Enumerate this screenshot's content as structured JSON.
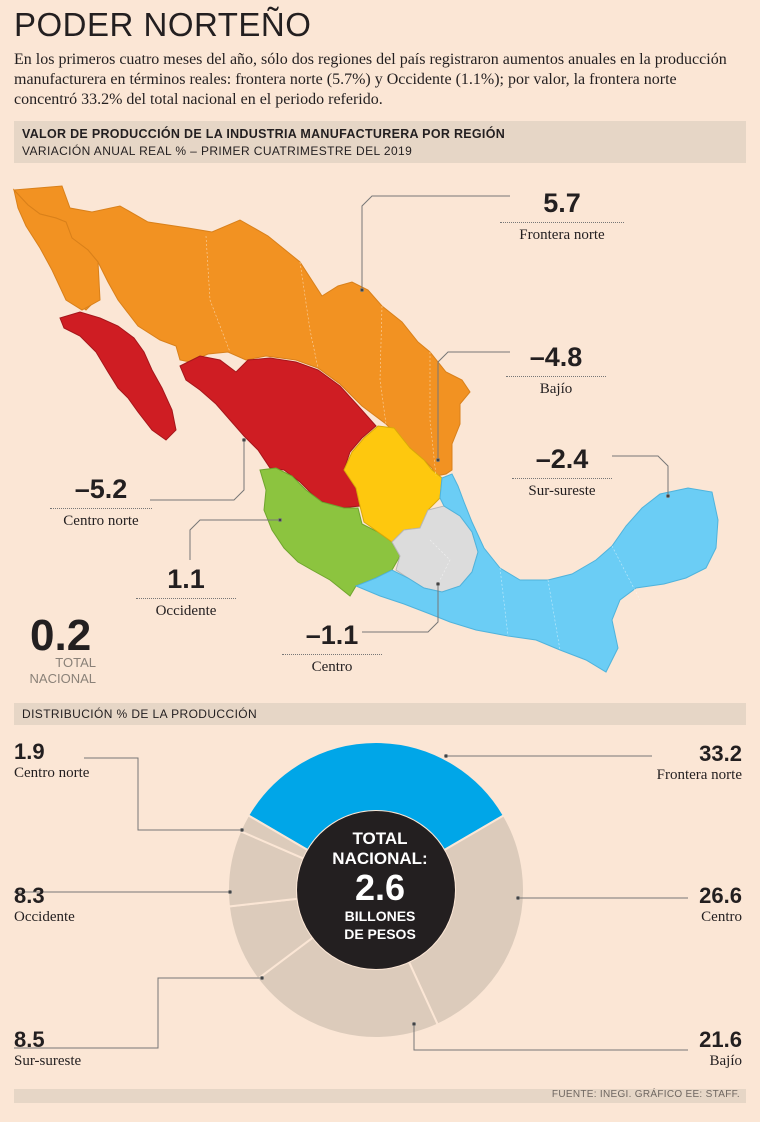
{
  "header": {
    "title": "PODER NORTEÑO",
    "intro": "En los primeros cuatro meses del año, sólo dos regiones del país registraron aumentos anuales en la producción manufacturera en términos reales: frontera norte (5.7%) y Occidente (1.1%); por valor, la frontera norte concentró 33.2% del total nacional en el periodo referido."
  },
  "map_section": {
    "title": "VALOR DE PRODUCCIÓN DE LA INDUSTRIA MANUFACTURERA POR REGIÓN",
    "subtitle": "VARIACIÓN ANUAL REAL % – PRIMER CUATRIMESTRE DEL 2019"
  },
  "total": {
    "value": "0.2",
    "label_line1": "TOTAL",
    "label_line2": "NACIONAL"
  },
  "donut_section": {
    "title": "DISTRIBUCIÓN % DE LA PRODUCCIÓN"
  },
  "donut_center": {
    "line1": "TOTAL",
    "line2": "NACIONAL:",
    "value": "2.6",
    "line3": "BILLONES",
    "line4": "DE PESOS"
  },
  "source": "FUENTE: INEGI. GRÁFICO EE: STAFF.",
  "colors": {
    "frontera_norte": "#f29222",
    "centro_norte": "#cf1d23",
    "occidente": "#8cc43f",
    "bajio": "#fec80e",
    "centro": "#dcdcdc",
    "sur_sureste": "#6bcdf5",
    "donut_highlight": "#00a6e8",
    "donut_rest": "#dccbbb",
    "donut_center": "#231f20"
  },
  "chart_data": [
    {
      "type": "bar",
      "title": "VALOR DE PRODUCCIÓN DE LA INDUSTRIA MANUFACTURERA POR REGIÓN",
      "subtitle": "VARIACIÓN ANUAL REAL % – PRIMER CUATRIMESTRE DEL 2019",
      "categories": [
        "Frontera norte",
        "Bajío",
        "Sur-sureste",
        "Centro norte",
        "Occidente",
        "Centro"
      ],
      "values": [
        5.7,
        -4.8,
        -2.4,
        -5.2,
        1.1,
        -1.1
      ],
      "labels": [
        "5.7",
        "–4.8",
        "–2.4",
        "–5.2",
        "1.1",
        "–1.1"
      ],
      "total": 0.2
    },
    {
      "type": "pie",
      "title": "DISTRIBUCIÓN % DE LA PRODUCCIÓN",
      "categories": [
        "Frontera norte",
        "Centro",
        "Bajío",
        "Sur-sureste",
        "Occidente",
        "Centro norte"
      ],
      "values": [
        33.2,
        26.6,
        21.6,
        8.5,
        8.3,
        1.9
      ],
      "labels": [
        "33.2",
        "26.6",
        "21.6",
        "8.5",
        "8.3",
        "1.9"
      ]
    }
  ]
}
